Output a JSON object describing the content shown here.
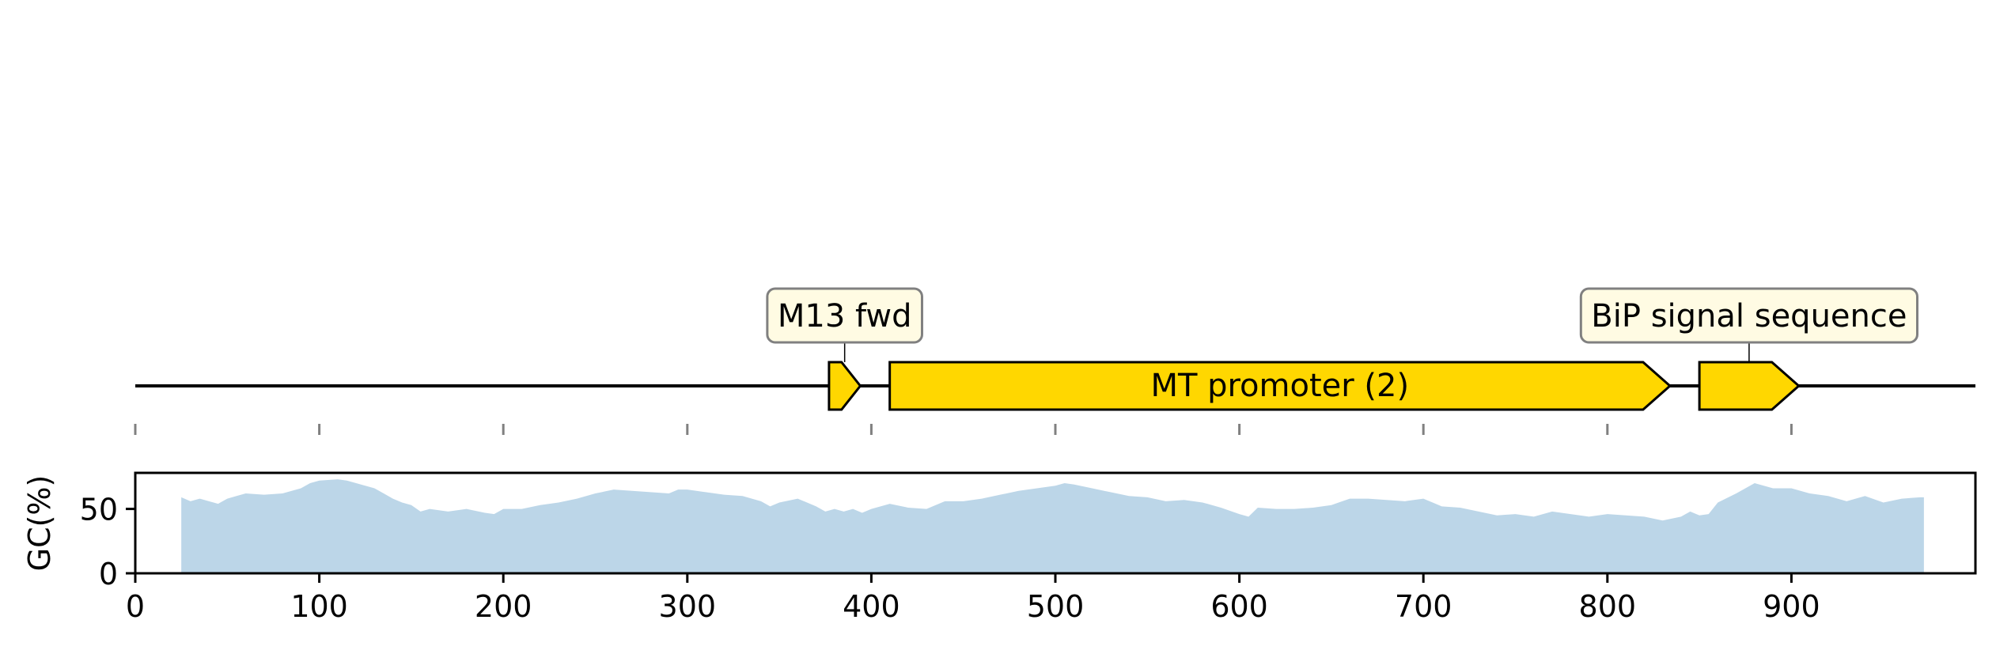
{
  "chart_data": [
    {
      "type": "feature_map",
      "xlim": [
        0,
        1000
      ],
      "features": [
        {
          "label": "M13 fwd",
          "start": 377,
          "end": 394,
          "strand": 1,
          "color": "#ffd700",
          "label_style": "callout"
        },
        {
          "label": "MT promoter (2)",
          "start": 410,
          "end": 834,
          "strand": 1,
          "color": "#ffd700",
          "label_style": "inline"
        },
        {
          "label": "BiP signal sequence",
          "start": 850,
          "end": 904,
          "strand": 1,
          "color": "#ffd700",
          "label_style": "callout"
        }
      ],
      "ticks": [
        0,
        100,
        200,
        300,
        400,
        500,
        600,
        700,
        800,
        900
      ]
    },
    {
      "type": "area",
      "ylabel": "GC(%)",
      "xlim": [
        0,
        1000
      ],
      "ylim": [
        0,
        78
      ],
      "yticks": [
        0,
        50
      ],
      "xticks": [
        0,
        100,
        200,
        300,
        400,
        500,
        600,
        700,
        800,
        900
      ],
      "fill_color": "#bcd6e8",
      "x": [
        25,
        30,
        35,
        40,
        45,
        50,
        55,
        60,
        70,
        80,
        90,
        95,
        100,
        110,
        115,
        120,
        125,
        130,
        135,
        140,
        145,
        150,
        155,
        160,
        170,
        180,
        190,
        195,
        200,
        210,
        220,
        230,
        240,
        250,
        260,
        270,
        280,
        290,
        295,
        300,
        310,
        320,
        330,
        340,
        345,
        350,
        360,
        370,
        375,
        380,
        385,
        390,
        395,
        400,
        410,
        420,
        430,
        440,
        450,
        460,
        470,
        480,
        490,
        500,
        505,
        510,
        520,
        530,
        540,
        550,
        560,
        570,
        580,
        590,
        600,
        605,
        610,
        620,
        630,
        640,
        650,
        660,
        670,
        680,
        690,
        700,
        710,
        720,
        730,
        740,
        750,
        760,
        770,
        780,
        790,
        800,
        810,
        820,
        830,
        840,
        845,
        850,
        855,
        860,
        870,
        880,
        890,
        900,
        910,
        920,
        930,
        940,
        950,
        960,
        970,
        972
      ],
      "y": [
        59,
        56,
        58,
        56,
        54,
        58,
        60,
        62,
        61,
        62,
        66,
        70,
        72,
        73,
        72,
        70,
        68,
        66,
        62,
        58,
        55,
        53,
        48,
        50,
        48,
        50,
        47,
        46,
        50,
        50,
        53,
        55,
        58,
        62,
        65,
        64,
        63,
        62,
        65,
        65,
        63,
        61,
        60,
        56,
        52,
        55,
        58,
        52,
        48,
        50,
        48,
        50,
        47,
        50,
        54,
        51,
        50,
        56,
        56,
        58,
        61,
        64,
        66,
        68,
        70,
        69,
        66,
        63,
        60,
        59,
        56,
        57,
        55,
        51,
        46,
        44,
        51,
        50,
        50,
        51,
        53,
        58,
        58,
        57,
        56,
        58,
        52,
        51,
        48,
        45,
        46,
        44,
        48,
        46,
        44,
        46,
        45,
        44,
        41,
        44,
        48,
        45,
        46,
        55,
        62,
        70,
        66,
        66,
        62,
        60,
        56,
        60,
        55,
        58,
        59,
        59
      ]
    }
  ]
}
